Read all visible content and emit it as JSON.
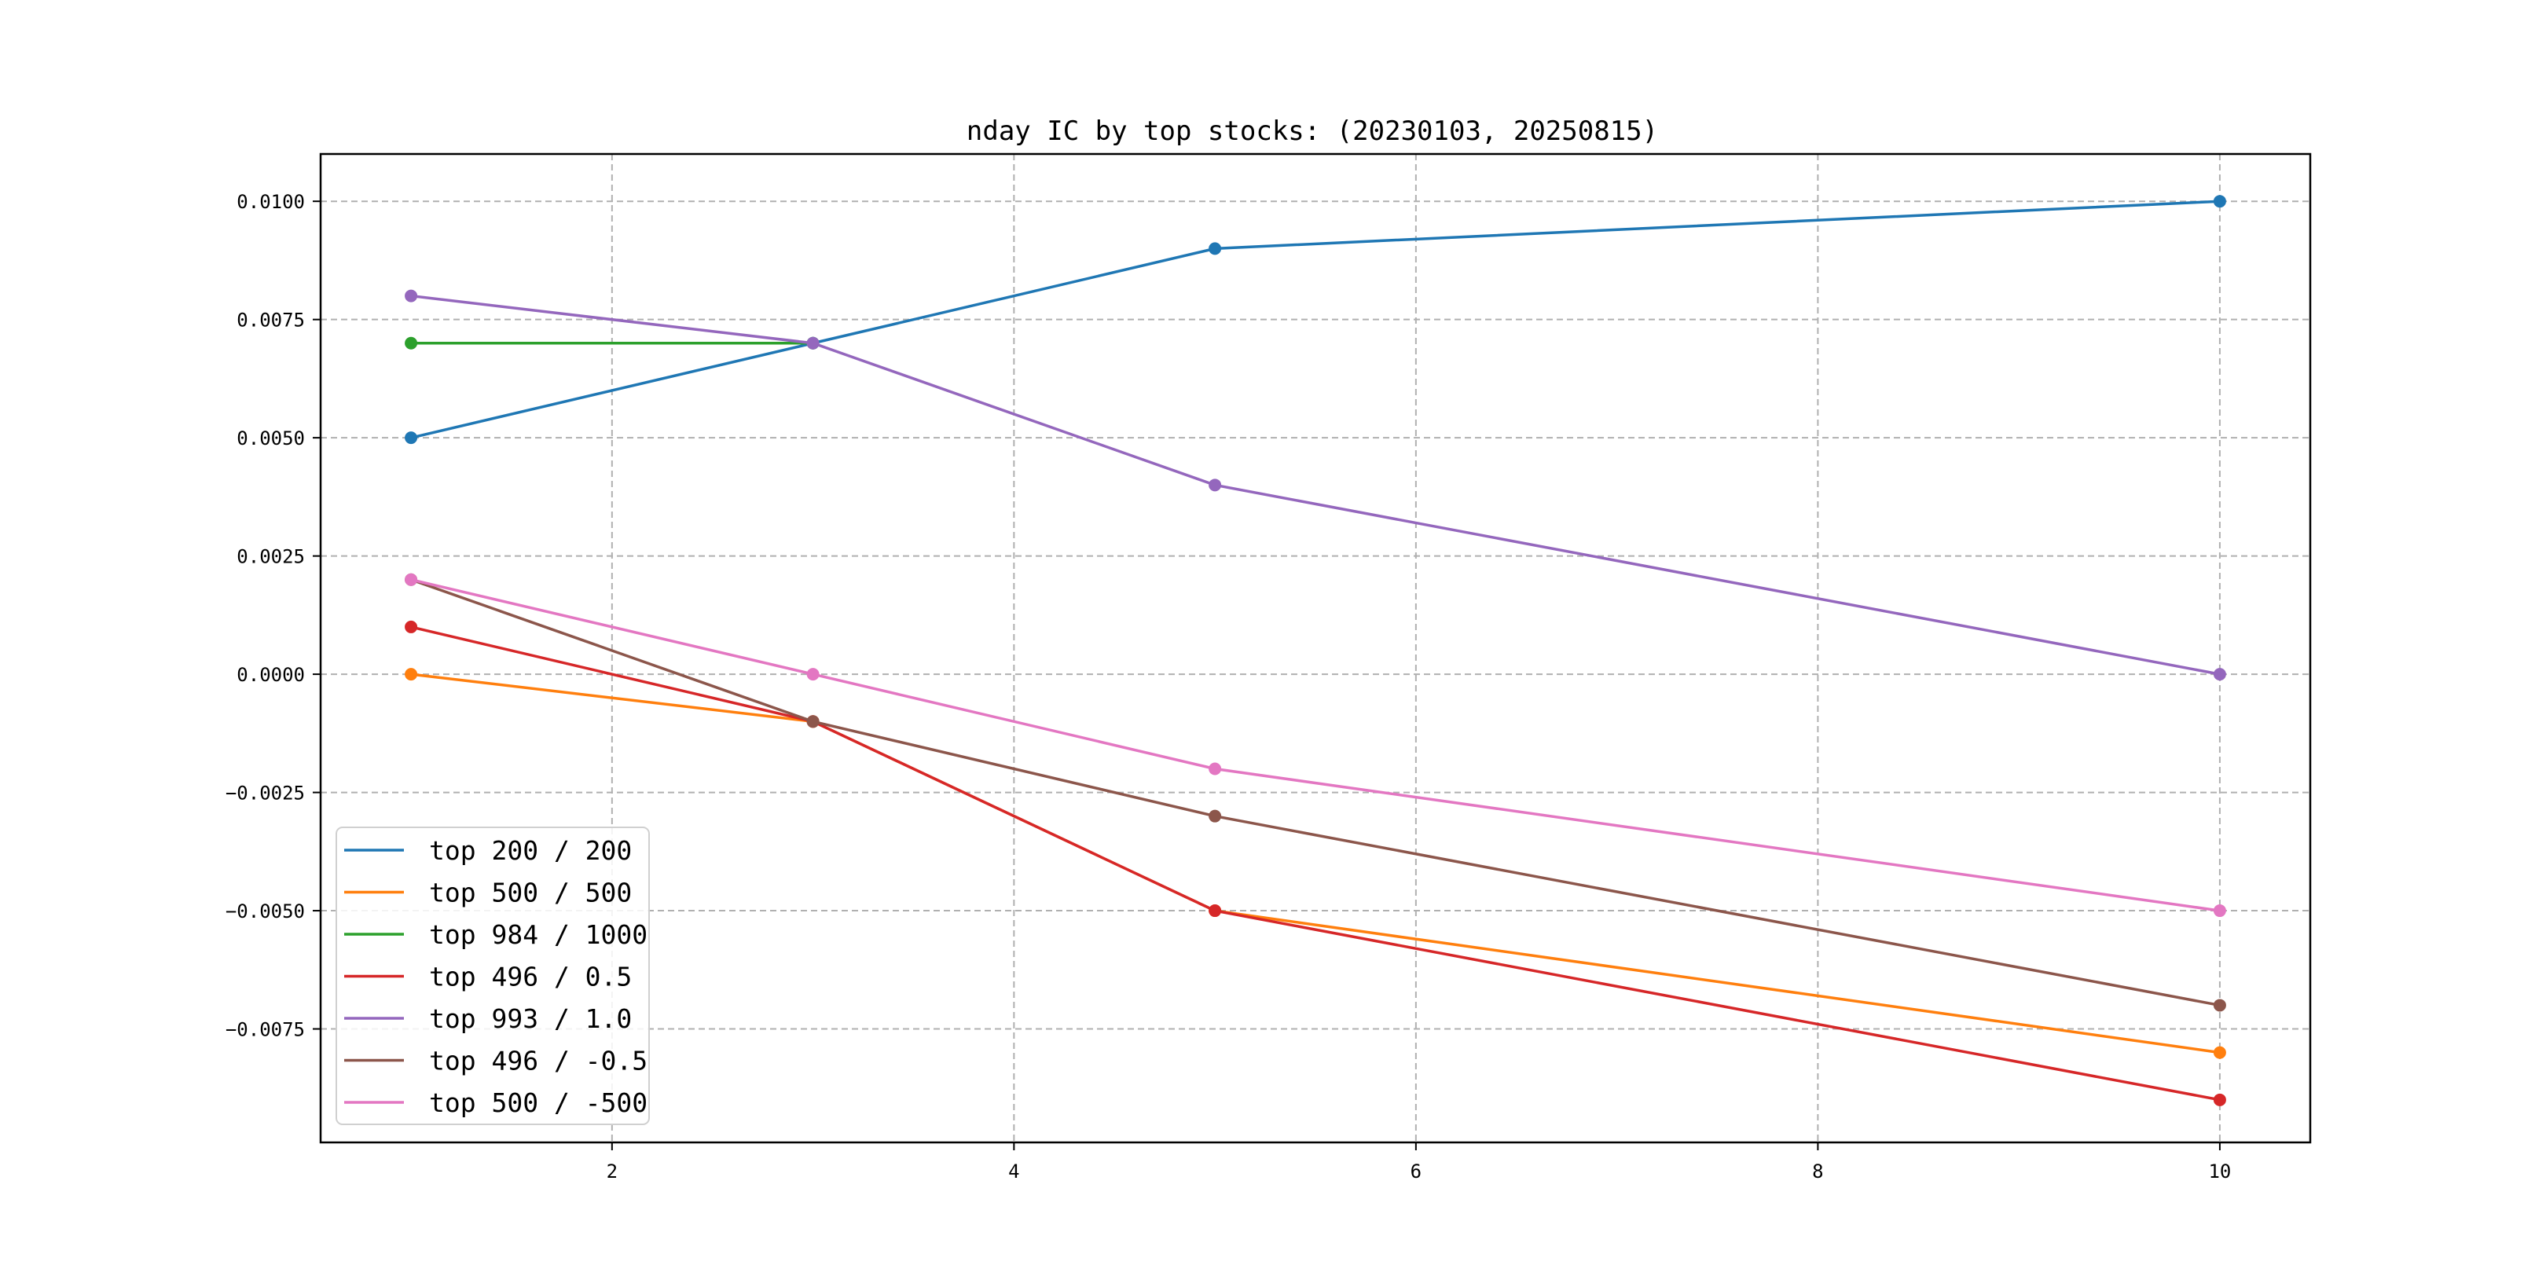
{
  "chart_data": {
    "type": "line",
    "title": "nday IC by top stocks: (20230103, 20250815)",
    "xlabel": "",
    "ylabel": "",
    "x": [
      1,
      3,
      5,
      10
    ],
    "xlim": [
      0.55,
      10.45
    ],
    "ylim": [
      -0.0099,
      0.011
    ],
    "xticks": [
      2,
      4,
      6,
      8,
      10
    ],
    "xtick_labels": [
      "2",
      "4",
      "6",
      "8",
      "10"
    ],
    "yticks": [
      0.01,
      0.0075,
      0.005,
      0.0025,
      0.0,
      -0.0025,
      -0.005,
      -0.0075
    ],
    "ytick_labels": [
      "0.0100",
      "0.0075",
      "0.0050",
      "0.0025",
      "0.0000",
      "−0.0025",
      "−0.0050",
      "−0.0075"
    ],
    "grid": true,
    "legend_position": "lower-left",
    "series": [
      {
        "name": "top 200 / 200",
        "color": "#1f77b4",
        "x": [
          1,
          3,
          5,
          10
        ],
        "values": [
          0.005,
          0.007,
          0.009,
          0.01
        ]
      },
      {
        "name": "top 500 / 500",
        "color": "#ff7f0e",
        "x": [
          1,
          3,
          5,
          10
        ],
        "values": [
          0.0,
          -0.001,
          -0.005,
          -0.008
        ]
      },
      {
        "name": "top 984 / 1000",
        "color": "#2ca02c",
        "x": [
          1,
          3
        ],
        "values": [
          0.007,
          0.007
        ]
      },
      {
        "name": "top 496 / 0.5",
        "color": "#d62728",
        "x": [
          1,
          3,
          5,
          10
        ],
        "values": [
          0.001,
          -0.001,
          -0.005,
          -0.009
        ]
      },
      {
        "name": "top 993 / 1.0",
        "color": "#9467bd",
        "x": [
          1,
          3,
          5,
          10
        ],
        "values": [
          0.008,
          0.007,
          0.004,
          0.0
        ]
      },
      {
        "name": "top 496 / -0.5",
        "color": "#8c564b",
        "x": [
          1,
          3,
          5,
          10
        ],
        "values": [
          0.002,
          -0.001,
          -0.003,
          -0.007
        ]
      },
      {
        "name": "top 500 / -500",
        "color": "#e377c2",
        "x": [
          1,
          3,
          5,
          10
        ],
        "values": [
          0.002,
          0.0,
          -0.002,
          -0.005
        ]
      }
    ]
  }
}
